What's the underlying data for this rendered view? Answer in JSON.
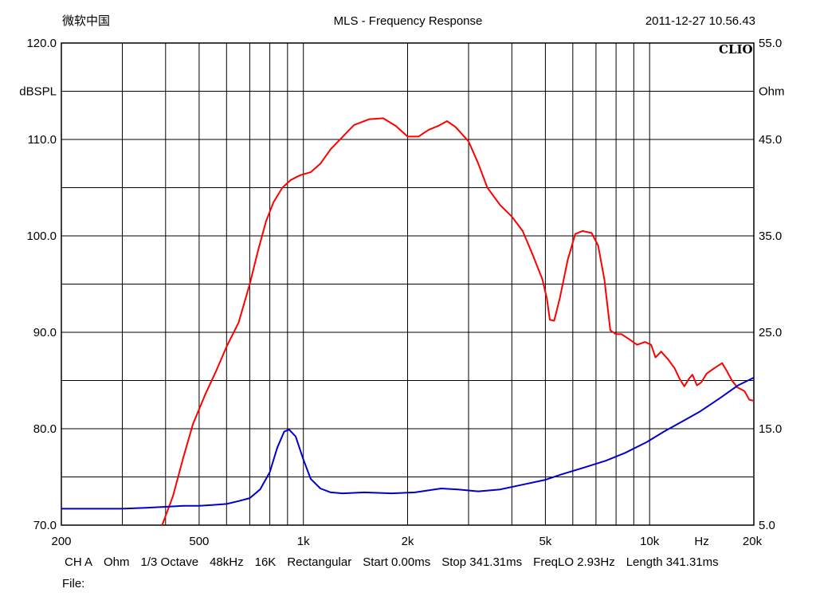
{
  "header": {
    "left": "微软中国",
    "title": "MLS - Frequency Response",
    "timestamp": "2011-12-27 10.56.43"
  },
  "brand": "CLIO",
  "footer": {
    "items": [
      "CH A",
      "Ohm",
      "1/3 Octave",
      "48kHz",
      "16K",
      "Rectangular",
      "Start 0.00ms",
      "Stop 341.31ms",
      "FreqLO 2.93Hz",
      "Length 341.31ms"
    ],
    "file_label": "File:"
  },
  "chart_data": {
    "type": "line",
    "title": "MLS - Frequency Response",
    "xscale": "log",
    "xlim": [
      200,
      20000
    ],
    "x_ticks": [
      {
        "value": 200,
        "label": "200"
      },
      {
        "value": 500,
        "label": "500"
      },
      {
        "value": 1000,
        "label": "1k"
      },
      {
        "value": 2000,
        "label": "2k"
      },
      {
        "value": 5000,
        "label": "5k"
      },
      {
        "value": 10000,
        "label": "10k"
      },
      {
        "value": 14142,
        "label": "Hz"
      },
      {
        "value": 20000,
        "label": "20k"
      }
    ],
    "ylabel_left": "dBSPL",
    "ylim_left": [
      70,
      120
    ],
    "y_ticks_left": [
      {
        "value": 120,
        "label": "120.0"
      },
      {
        "value": 110,
        "label": "110.0"
      },
      {
        "value": 100,
        "label": "100.0"
      },
      {
        "value": 90,
        "label": "90.0"
      },
      {
        "value": 80,
        "label": "80.0"
      },
      {
        "value": 70,
        "label": "70.0"
      }
    ],
    "ylabel_right": "Ohm",
    "ylim_right": [
      5,
      55
    ],
    "y_ticks_right": [
      {
        "value": 55,
        "label": "55.0"
      },
      {
        "value": 45,
        "label": "45.0"
      },
      {
        "value": 35,
        "label": "35.0"
      },
      {
        "value": 25,
        "label": "25.0"
      },
      {
        "value": 15,
        "label": "15.0"
      },
      {
        "value": 5,
        "label": "5.0"
      }
    ],
    "grid": true,
    "series": [
      {
        "axis": "left",
        "color": "#ff0000",
        "points": [
          [
            391,
            70.0
          ],
          [
            420,
            73.0
          ],
          [
            450,
            77.0
          ],
          [
            480,
            80.5
          ],
          [
            520,
            83.5
          ],
          [
            560,
            86.0
          ],
          [
            600,
            88.5
          ],
          [
            650,
            91.0
          ],
          [
            700,
            95.0
          ],
          [
            740,
            98.5
          ],
          [
            780,
            101.5
          ],
          [
            820,
            103.5
          ],
          [
            870,
            105.0
          ],
          [
            920,
            105.8
          ],
          [
            980,
            106.3
          ],
          [
            1050,
            106.6
          ],
          [
            1120,
            107.5
          ],
          [
            1200,
            109.0
          ],
          [
            1300,
            110.3
          ],
          [
            1400,
            111.5
          ],
          [
            1550,
            112.1
          ],
          [
            1700,
            112.2
          ],
          [
            1850,
            111.4
          ],
          [
            2000,
            110.3
          ],
          [
            2150,
            110.3
          ],
          [
            2300,
            111.0
          ],
          [
            2450,
            111.4
          ],
          [
            2600,
            111.9
          ],
          [
            2750,
            111.3
          ],
          [
            3000,
            109.8
          ],
          [
            3200,
            107.5
          ],
          [
            3400,
            105.0
          ],
          [
            3700,
            103.2
          ],
          [
            4000,
            102.0
          ],
          [
            4300,
            100.5
          ],
          [
            4600,
            98.0
          ],
          [
            4900,
            95.5
          ],
          [
            5050,
            93.5
          ],
          [
            5150,
            91.3
          ],
          [
            5300,
            91.2
          ],
          [
            5500,
            93.5
          ],
          [
            5800,
            97.5
          ],
          [
            6100,
            100.2
          ],
          [
            6400,
            100.5
          ],
          [
            6800,
            100.3
          ],
          [
            7100,
            99.0
          ],
          [
            7400,
            95.5
          ],
          [
            7700,
            90.2
          ],
          [
            8000,
            89.8
          ],
          [
            8300,
            89.8
          ],
          [
            8800,
            89.2
          ],
          [
            9200,
            88.7
          ],
          [
            9700,
            89.0
          ],
          [
            10100,
            88.7
          ],
          [
            10400,
            87.4
          ],
          [
            10800,
            88.0
          ],
          [
            11300,
            87.2
          ],
          [
            11800,
            86.3
          ],
          [
            12200,
            85.2
          ],
          [
            12600,
            84.4
          ],
          [
            13000,
            85.2
          ],
          [
            13300,
            85.6
          ],
          [
            13700,
            84.5
          ],
          [
            14100,
            84.8
          ],
          [
            14600,
            85.7
          ],
          [
            15400,
            86.3
          ],
          [
            16200,
            86.8
          ],
          [
            16700,
            86.0
          ],
          [
            17300,
            85.0
          ],
          [
            17900,
            84.3
          ],
          [
            18800,
            83.9
          ],
          [
            19400,
            83.0
          ],
          [
            20000,
            82.9
          ]
        ]
      },
      {
        "axis": "right",
        "color": "#0000cc",
        "points": [
          [
            200,
            6.7
          ],
          [
            250,
            6.7
          ],
          [
            300,
            6.7
          ],
          [
            350,
            6.8
          ],
          [
            400,
            6.9
          ],
          [
            450,
            7.0
          ],
          [
            500,
            7.0
          ],
          [
            550,
            7.1
          ],
          [
            600,
            7.2
          ],
          [
            650,
            7.5
          ],
          [
            700,
            7.8
          ],
          [
            750,
            8.7
          ],
          [
            800,
            10.5
          ],
          [
            840,
            13.0
          ],
          [
            880,
            14.7
          ],
          [
            910,
            14.9
          ],
          [
            950,
            14.2
          ],
          [
            1000,
            11.8
          ],
          [
            1050,
            9.8
          ],
          [
            1120,
            8.8
          ],
          [
            1200,
            8.4
          ],
          [
            1300,
            8.3
          ],
          [
            1500,
            8.4
          ],
          [
            1800,
            8.3
          ],
          [
            2100,
            8.4
          ],
          [
            2500,
            8.8
          ],
          [
            2800,
            8.7
          ],
          [
            3200,
            8.5
          ],
          [
            3700,
            8.7
          ],
          [
            4300,
            9.2
          ],
          [
            5000,
            9.7
          ],
          [
            5600,
            10.3
          ],
          [
            6500,
            11.0
          ],
          [
            7500,
            11.7
          ],
          [
            8500,
            12.5
          ],
          [
            9800,
            13.6
          ],
          [
            11000,
            14.7
          ],
          [
            12500,
            15.8
          ],
          [
            14000,
            16.8
          ],
          [
            16000,
            18.2
          ],
          [
            18000,
            19.5
          ],
          [
            20000,
            20.3
          ]
        ]
      }
    ]
  }
}
